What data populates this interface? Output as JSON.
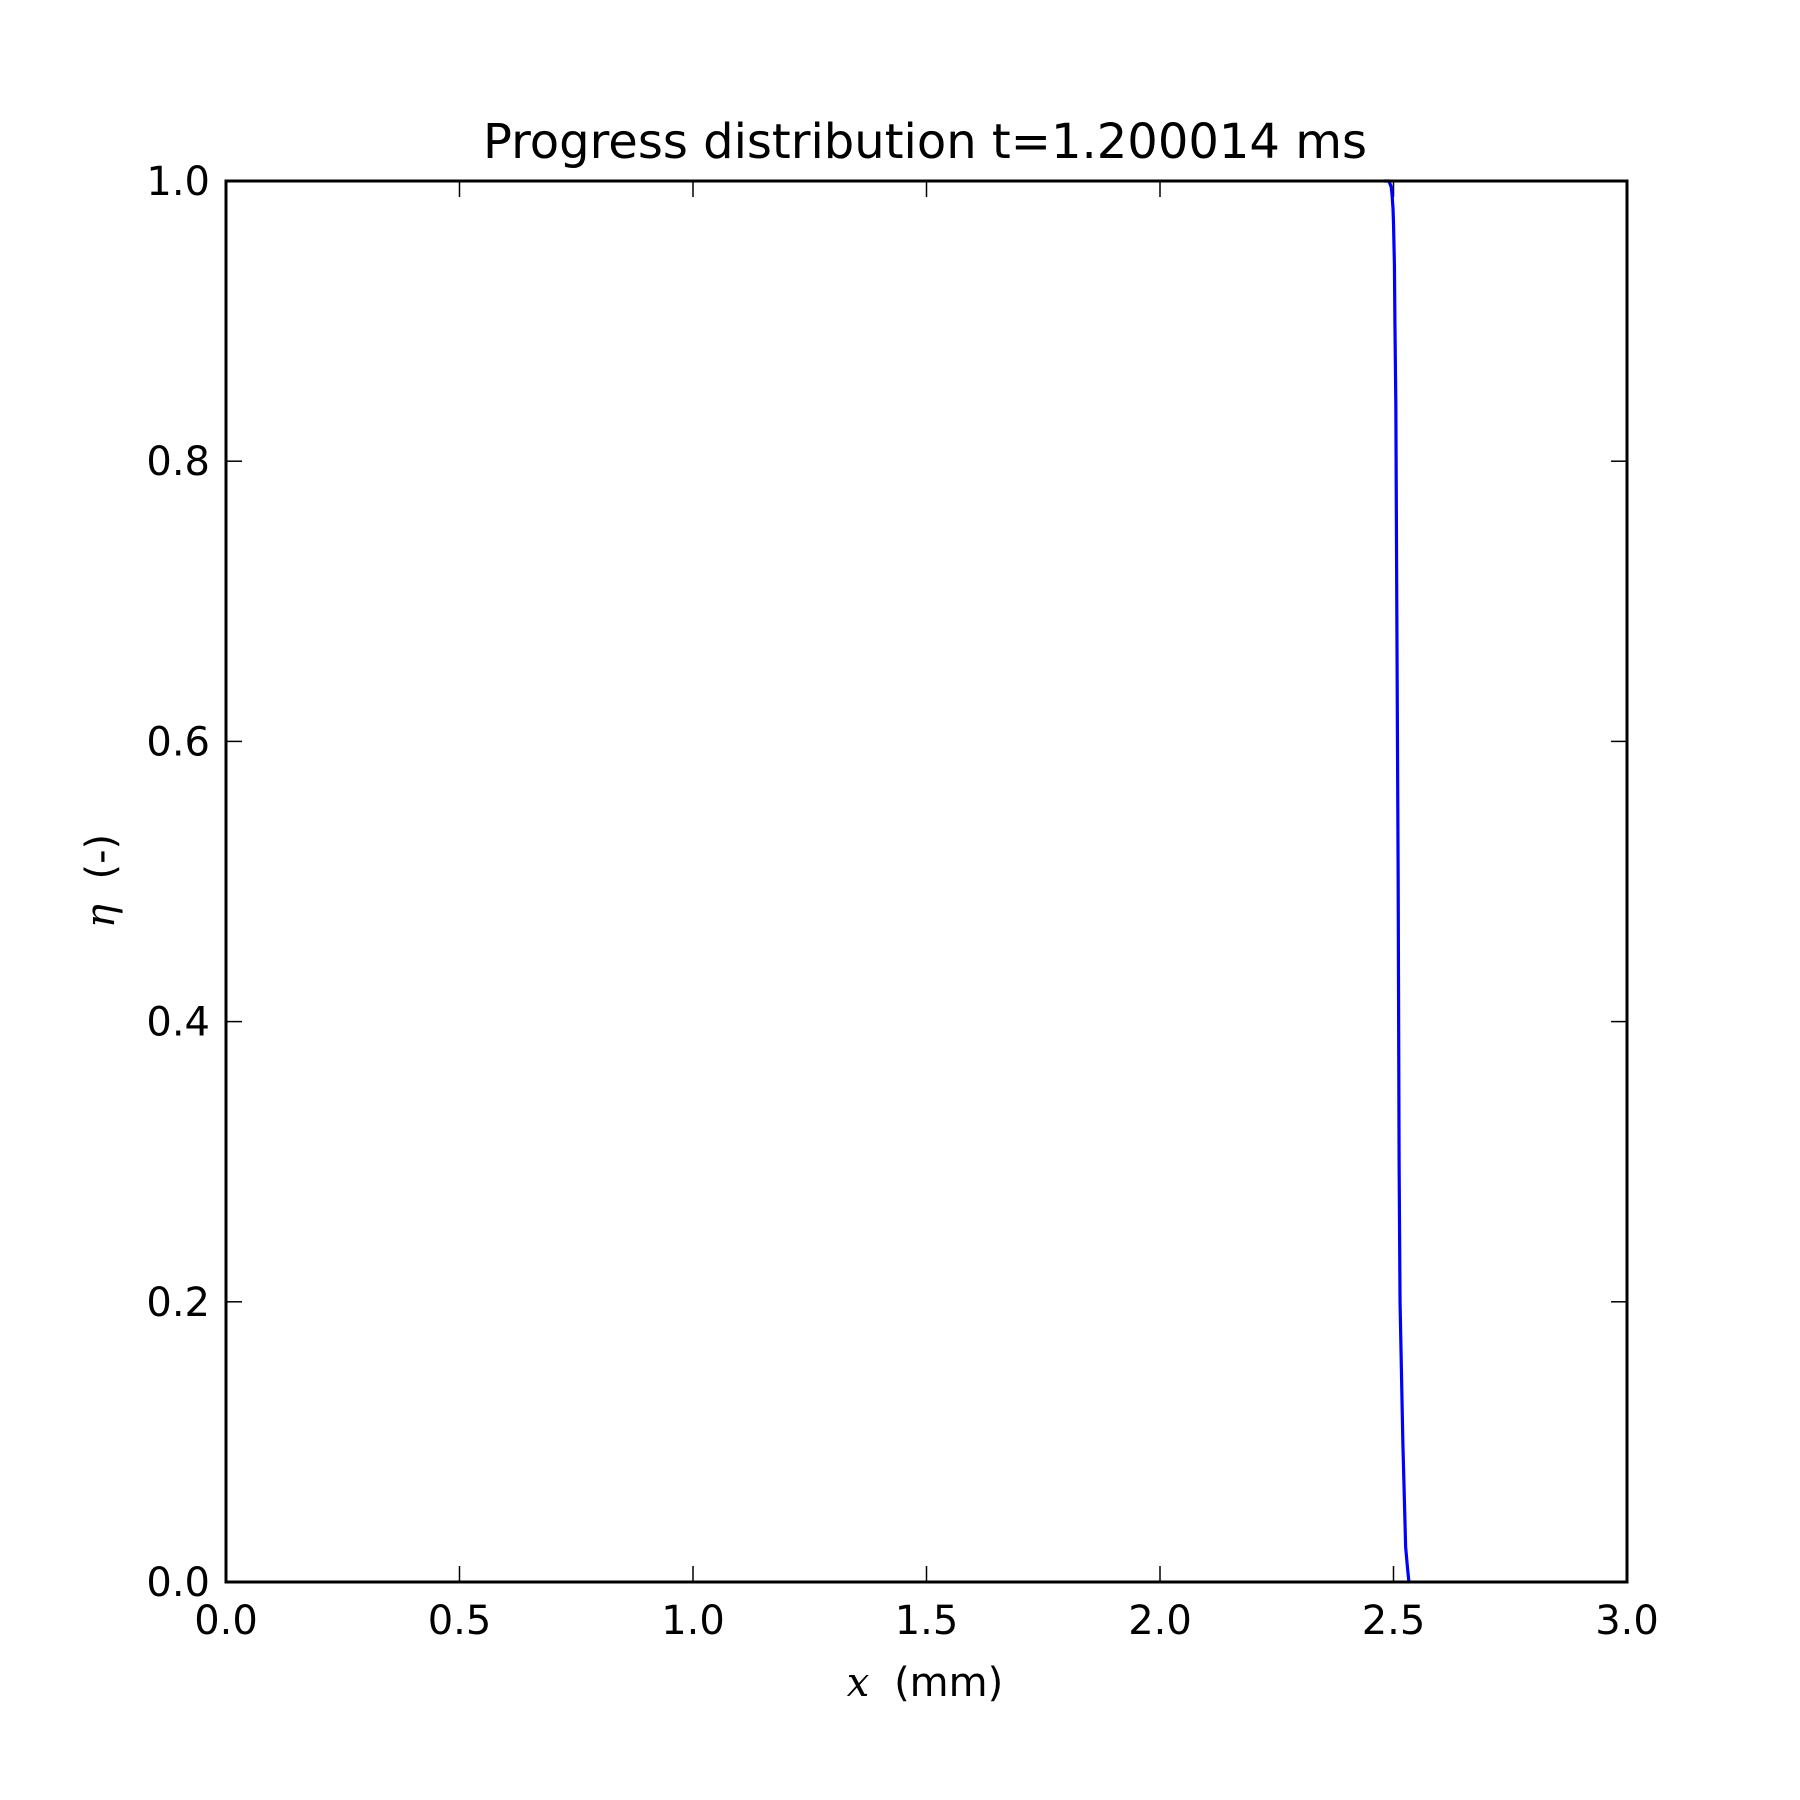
{
  "chart_data": {
    "type": "line",
    "title": "Progress distribution t=1.200014 ms",
    "xlabel": {
      "symbol": "x",
      "unit": "(mm)"
    },
    "ylabel": {
      "symbol": "η",
      "unit": "(-)"
    },
    "xlim": [
      0.0,
      3.0
    ],
    "ylim": [
      0.0,
      1.0
    ],
    "xticks": [
      "0.0",
      "0.5",
      "1.0",
      "1.5",
      "2.0",
      "2.5",
      "3.0"
    ],
    "yticks": [
      "0.0",
      "0.2",
      "0.4",
      "0.6",
      "0.8",
      "1.0"
    ],
    "grid": false,
    "series": [
      {
        "color": "#0000ff",
        "x": [
          2.48,
          2.49,
          2.495,
          2.497,
          2.499,
          2.5,
          2.502,
          2.503,
          2.505,
          2.507,
          2.51,
          2.512,
          2.514,
          2.52,
          2.526,
          2.53,
          2.533
        ],
        "y": [
          1.0,
          1.0,
          0.996,
          0.99,
          0.98,
          0.97,
          0.94,
          0.9,
          0.84,
          0.7,
          0.5,
          0.3,
          0.2,
          0.1,
          0.025,
          0.01,
          0.0
        ]
      }
    ]
  }
}
